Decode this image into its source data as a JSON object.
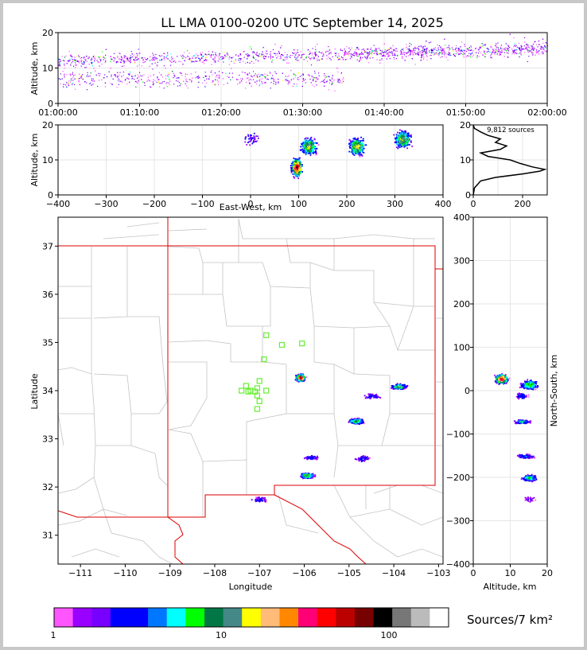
{
  "chart_data": [
    {
      "id": "time_height",
      "type": "scatter",
      "title": "LL LMA 0100-0200 UTC September 14, 2025",
      "xlabel": "",
      "ylabel": "Altitude, km",
      "x_ticks": [
        "01:00:00",
        "01:10:00",
        "01:20:00",
        "01:30:00",
        "01:40:00",
        "01:50:00",
        "02:00:00"
      ],
      "xlim": [
        0,
        60
      ],
      "ylim": [
        0,
        20
      ],
      "y_ticks": [
        0,
        10,
        20
      ],
      "x_units": "minutes after 01:00 UTC"
    },
    {
      "id": "ew_altitude",
      "type": "scatter",
      "xlabel": "East-West, km",
      "ylabel": "Altitude, km",
      "xlim": [
        -400,
        400
      ],
      "ylim": [
        0,
        20
      ],
      "x_ticks": [
        -400,
        -300,
        -200,
        -100,
        0,
        100,
        200,
        300,
        400
      ],
      "y_ticks": [
        0,
        10,
        20
      ],
      "clusters": [
        {
          "x": 95,
          "z": 8,
          "intensity": "high"
        },
        {
          "x": 120,
          "z": 14,
          "intensity": "medium"
        },
        {
          "x": 220,
          "z": 14,
          "intensity": "medium"
        },
        {
          "x": 315,
          "z": 16,
          "intensity": "medium"
        },
        {
          "x": 0,
          "z": 16,
          "intensity": "low"
        }
      ]
    },
    {
      "id": "altitude_histogram",
      "type": "line",
      "annotation": "9,812 sources",
      "xlim": [
        0,
        300
      ],
      "ylim": [
        0,
        20
      ],
      "x_ticks": [
        0,
        200
      ],
      "y_ticks": [
        0,
        10,
        20
      ],
      "profile": [
        {
          "alt": 0.0,
          "count": 0
        },
        {
          "alt": 2.0,
          "count": 5
        },
        {
          "alt": 4.0,
          "count": 30
        },
        {
          "alt": 5.0,
          "count": 90
        },
        {
          "alt": 6.0,
          "count": 200
        },
        {
          "alt": 6.8,
          "count": 270
        },
        {
          "alt": 7.3,
          "count": 290
        },
        {
          "alt": 8.0,
          "count": 240
        },
        {
          "alt": 9.0,
          "count": 190
        },
        {
          "alt": 10.0,
          "count": 150
        },
        {
          "alt": 11.0,
          "count": 60
        },
        {
          "alt": 12.0,
          "count": 30
        },
        {
          "alt": 13.0,
          "count": 110
        },
        {
          "alt": 14.0,
          "count": 135
        },
        {
          "alt": 15.0,
          "count": 90
        },
        {
          "alt": 16.0,
          "count": 110
        },
        {
          "alt": 17.0,
          "count": 60
        },
        {
          "alt": 18.0,
          "count": 30
        },
        {
          "alt": 19.0,
          "count": 5
        },
        {
          "alt": 20.0,
          "count": 0
        }
      ]
    },
    {
      "id": "plan_view",
      "type": "scatter",
      "xlabel": "Longitude",
      "ylabel": "Latitude",
      "xlim": [
        -111.5,
        -102.9
      ],
      "ylim": [
        30.4,
        37.6
      ],
      "x_ticks": [
        -111,
        -110,
        -109,
        -108,
        -107,
        -106,
        -105,
        -104,
        -103
      ],
      "y_ticks": [
        31,
        32,
        33,
        34,
        35,
        36,
        37
      ],
      "stations": [
        {
          "lon": -106.85,
          "lat": 35.15
        },
        {
          "lon": -106.5,
          "lat": 34.95
        },
        {
          "lon": -106.05,
          "lat": 34.98
        },
        {
          "lon": -106.9,
          "lat": 34.65
        },
        {
          "lon": -107.0,
          "lat": 34.2
        },
        {
          "lon": -107.3,
          "lat": 34.1
        },
        {
          "lon": -107.05,
          "lat": 34.05
        },
        {
          "lon": -107.4,
          "lat": 34.0
        },
        {
          "lon": -107.2,
          "lat": 34.0
        },
        {
          "lon": -106.85,
          "lat": 34.0
        },
        {
          "lon": -107.05,
          "lat": 33.9
        },
        {
          "lon": -107.0,
          "lat": 33.78
        },
        {
          "lon": -107.05,
          "lat": 33.62
        },
        {
          "lon": -107.25,
          "lat": 33.98
        },
        {
          "lon": -107.1,
          "lat": 33.98
        }
      ],
      "clusters": [
        {
          "lon": -106.1,
          "lat": 34.28,
          "intensity": "high"
        },
        {
          "lon": -103.9,
          "lat": 34.1,
          "intensity": "medium"
        },
        {
          "lon": -104.5,
          "lat": 33.9,
          "intensity": "low"
        },
        {
          "lon": -104.85,
          "lat": 33.38,
          "intensity": "medium"
        },
        {
          "lon": -105.95,
          "lat": 32.25,
          "intensity": "medium"
        },
        {
          "lon": -105.85,
          "lat": 32.62,
          "intensity": "low"
        },
        {
          "lon": -104.7,
          "lat": 32.6,
          "intensity": "low"
        },
        {
          "lon": -107.0,
          "lat": 31.75,
          "intensity": "low"
        }
      ]
    },
    {
      "id": "altitude_ns",
      "type": "scatter",
      "xlabel": "Altitude, km",
      "ylabel": "North-South, km",
      "xlim": [
        0,
        20
      ],
      "ylim": [
        -400,
        400
      ],
      "x_ticks": [
        0,
        10,
        20
      ],
      "y_ticks": [
        -400,
        -300,
        -200,
        -100,
        0,
        100,
        200,
        300,
        400
      ]
    }
  ],
  "colorbar": {
    "label": "Sources/7 km²",
    "tick_labels": [
      "1",
      "10",
      "100"
    ],
    "colors": [
      "#ff55ff",
      "#9900ff",
      "#7700ff",
      "#0000ff",
      "#0000ff",
      "#0077ff",
      "#00ffff",
      "#00ff00",
      "#007744",
      "#448888",
      "#ffff00",
      "#ffbb77",
      "#ff8800",
      "#ff0077",
      "#ff0000",
      "#bb0000",
      "#770000",
      "#000000",
      "#777777",
      "#bbbbbb",
      "#ffffff"
    ]
  }
}
